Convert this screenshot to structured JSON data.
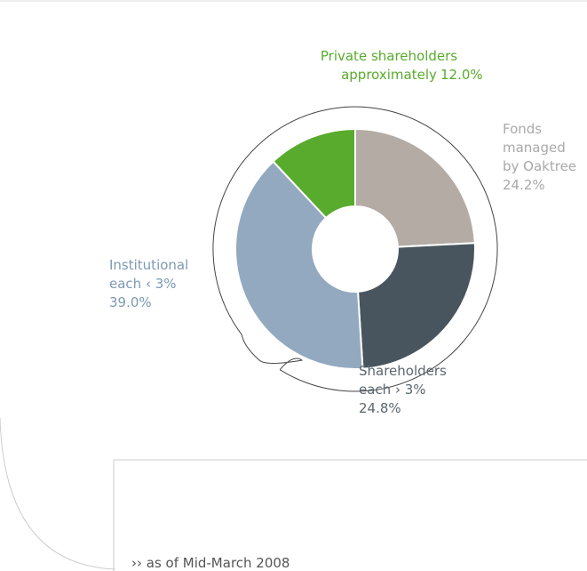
{
  "chart_data": {
    "type": "donut",
    "categories": [
      [
        "Fonds",
        "managed",
        "by Oaktree"
      ],
      [
        "Shareholders",
        "each › 3%"
      ],
      [
        "Institutional",
        "each ‹ 3%"
      ],
      [
        "Private shareholders",
        "approximately"
      ]
    ],
    "values": [
      24.2,
      24.8,
      39.0,
      12.0
    ],
    "value_labels": [
      "24.2%",
      "24.8%",
      "39.0%",
      "12.0%"
    ],
    "colors": [
      "#b4aba5",
      "#48555e",
      "#93a9c0",
      "#58ab2c"
    ],
    "label_colors": [
      "#a9a9a9",
      "#5a6770",
      "#7d99b4",
      "#58ab2c"
    ],
    "note": "›› as of Mid-March 2008"
  }
}
